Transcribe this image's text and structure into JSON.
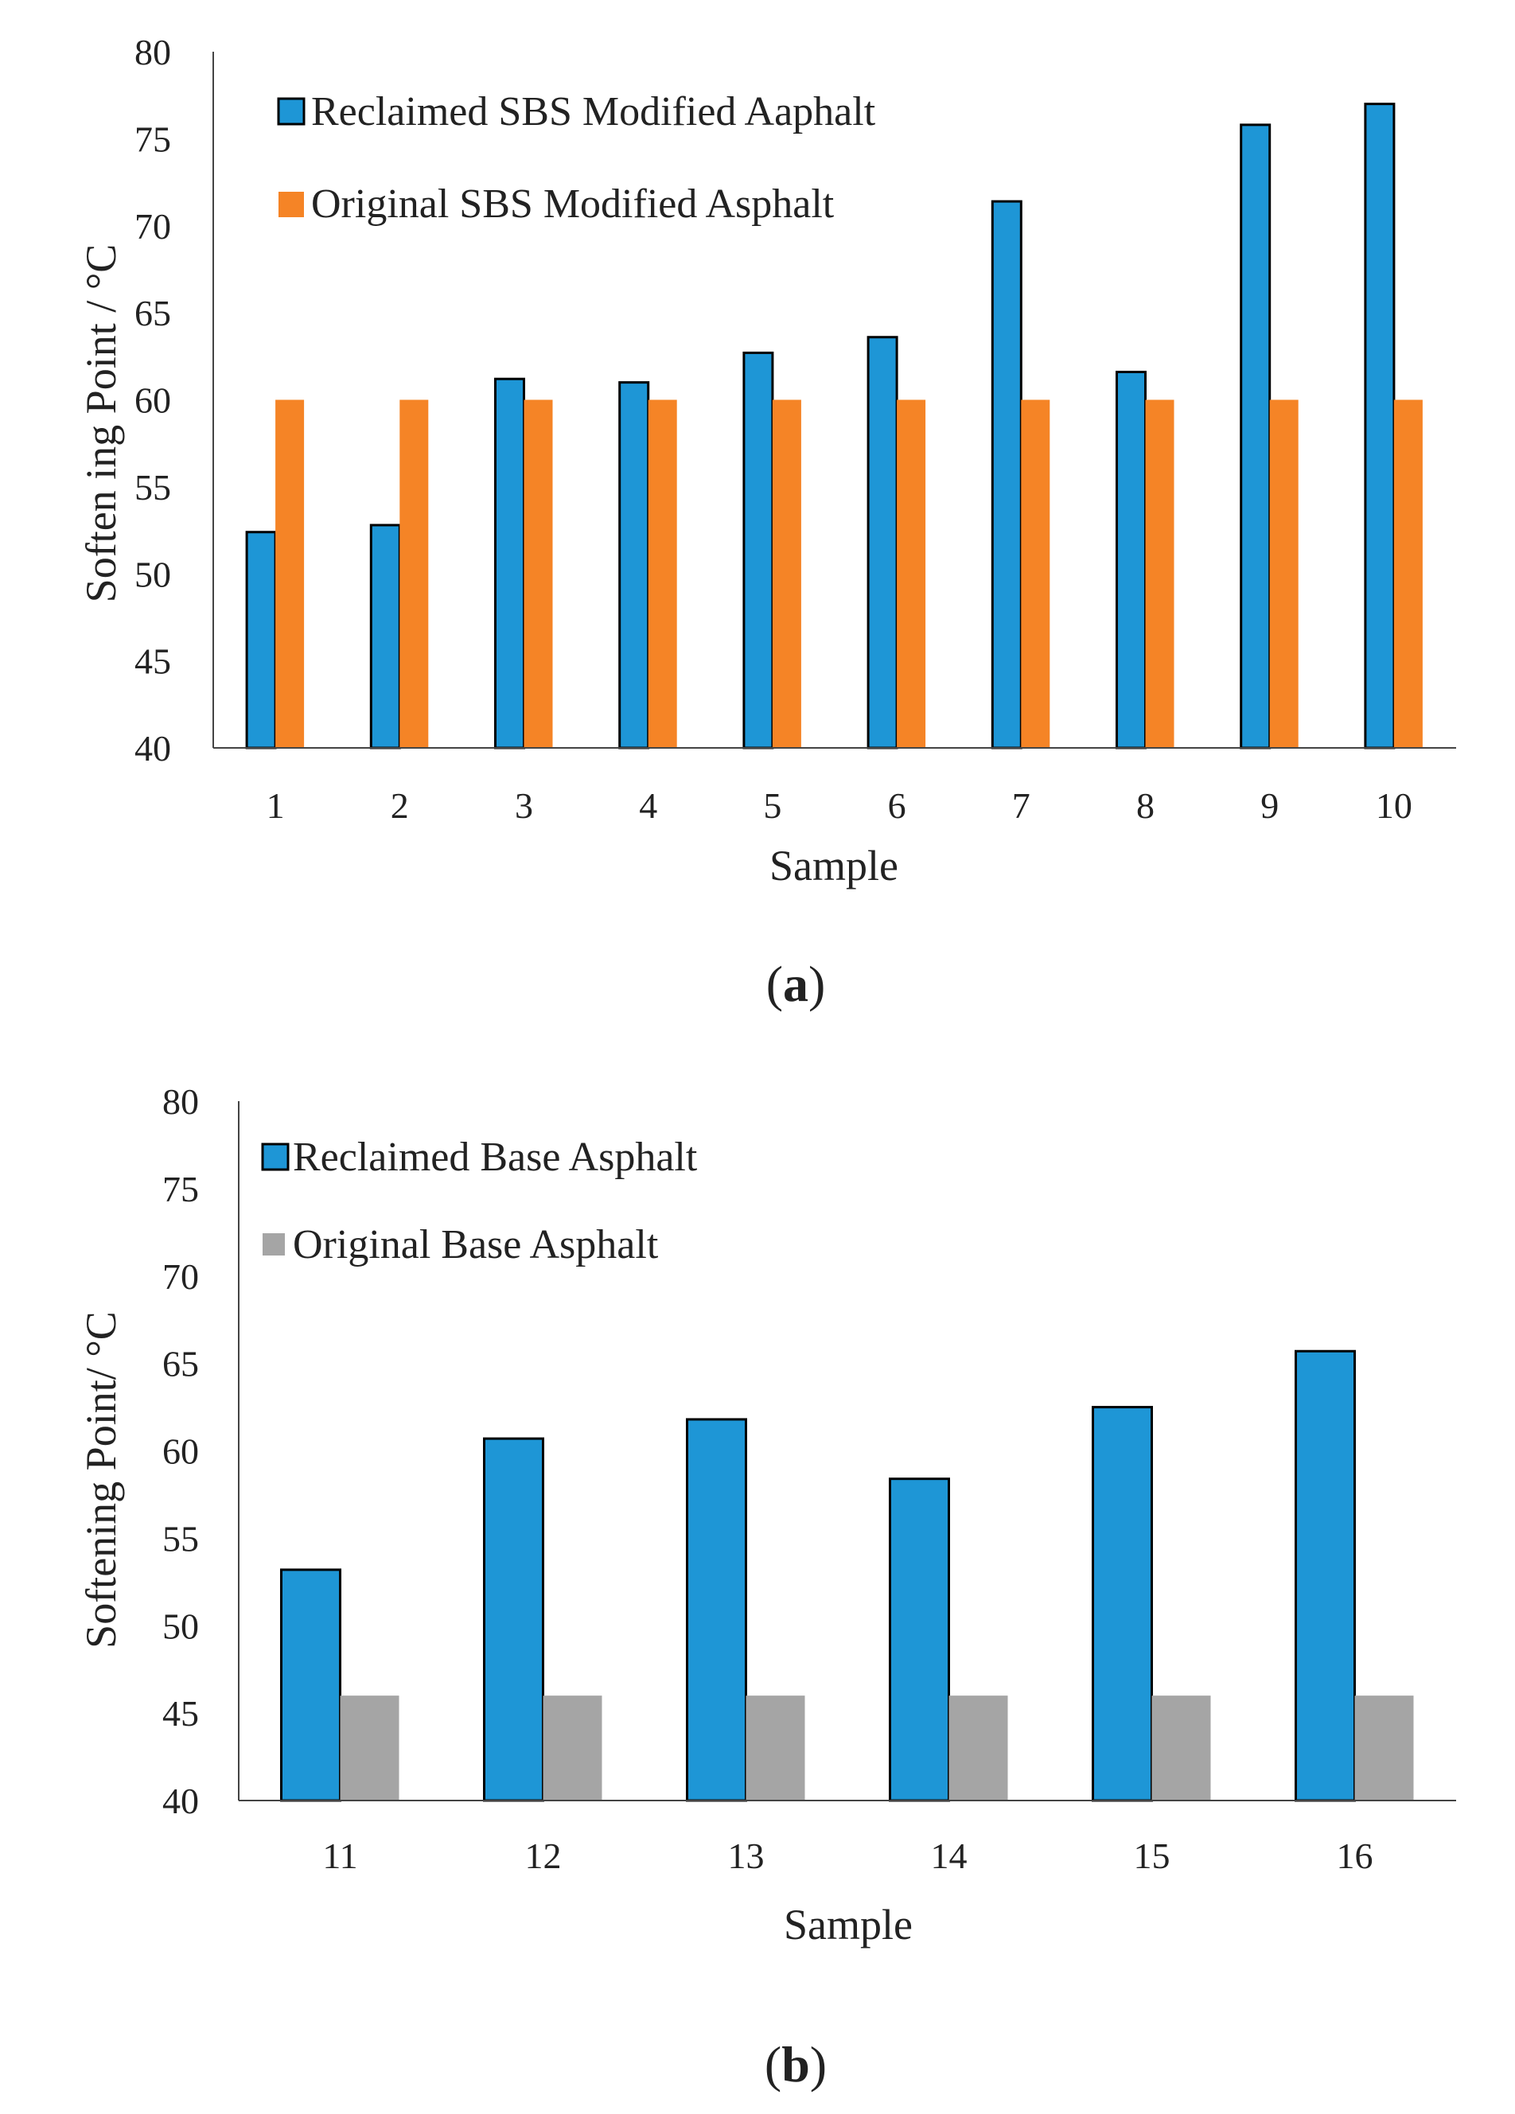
{
  "chart_data": [
    {
      "type": "bar",
      "categories": [
        "1",
        "2",
        "3",
        "4",
        "5",
        "6",
        "7",
        "8",
        "9",
        "10"
      ],
      "series": [
        {
          "name": "Reclaimed SBS Modified Aaphalt",
          "color": "#1e96d6",
          "values": [
            52.4,
            52.8,
            61.2,
            61.0,
            62.7,
            63.6,
            71.4,
            61.6,
            75.8,
            77.0
          ]
        },
        {
          "name": "Original SBS Modified Asphalt",
          "color": "#f58426",
          "values": [
            60,
            60,
            60,
            60,
            60,
            60,
            60,
            60,
            60,
            60
          ]
        }
      ],
      "title": "",
      "xlabel": "Sample",
      "ylabel": "Soften ing Point  / °C",
      "ylim": [
        40,
        80
      ],
      "yticks": [
        "40",
        "45",
        "50",
        "55",
        "60",
        "65",
        "70",
        "75",
        "80"
      ],
      "legend_position": "top-left",
      "grid": false,
      "caption": {
        "open": "(",
        "letter": "a",
        "close": ")"
      }
    },
    {
      "type": "bar",
      "categories": [
        "11",
        "12",
        "13",
        "14",
        "15",
        "16"
      ],
      "series": [
        {
          "name": "Reclaimed Base Asphalt",
          "color": "#1e96d6",
          "values": [
            53.2,
            60.7,
            61.8,
            58.4,
            62.5,
            65.7
          ]
        },
        {
          "name": "Original Base Asphalt",
          "color": "#a5a5a5",
          "values": [
            46,
            46,
            46,
            46,
            46,
            46
          ]
        }
      ],
      "title": "",
      "xlabel": "Sample",
      "ylabel": "Softening Point/ °C",
      "ylim": [
        40,
        80
      ],
      "yticks": [
        "40",
        "45",
        "50",
        "55",
        "60",
        "65",
        "70",
        "75",
        "80"
      ],
      "legend_position": "top-left",
      "grid": false,
      "caption": {
        "open": "(",
        "letter": "b",
        "close": ")"
      }
    }
  ]
}
